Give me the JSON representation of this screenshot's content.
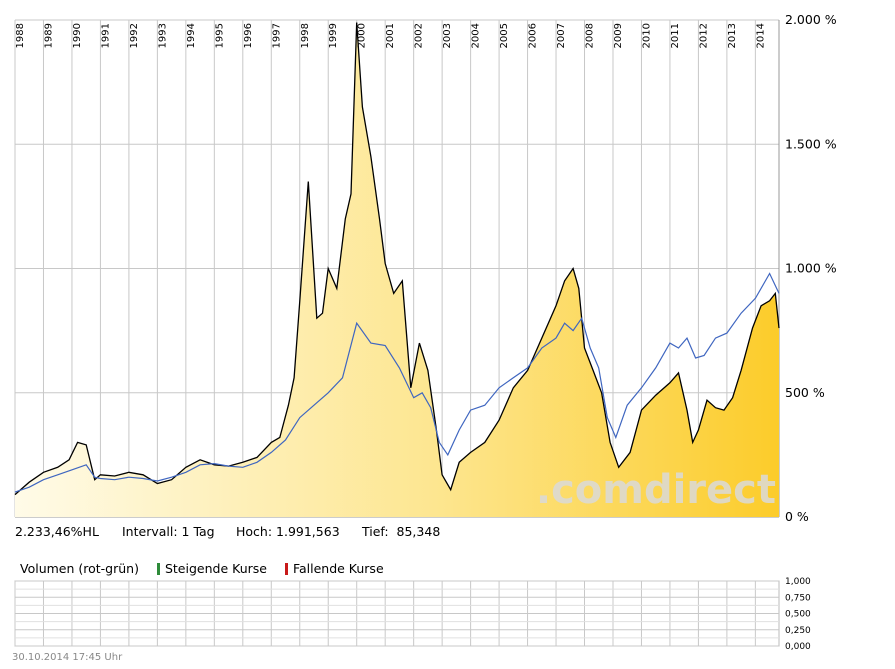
{
  "chart_data": [
    {
      "type": "area",
      "xlim": [
        1988,
        2014.83
      ],
      "ylim": [
        0,
        2000
      ],
      "years": [
        "1988",
        "1989",
        "1990",
        "1991",
        "1992",
        "1993",
        "1994",
        "1995",
        "1996",
        "1997",
        "1998",
        "1999",
        "2000",
        "2001",
        "2002",
        "2003",
        "2004",
        "2005",
        "2006",
        "2007",
        "2008",
        "2009",
        "2010",
        "2011",
        "2012",
        "2013",
        "2014"
      ],
      "y_ticks": [
        {
          "value": 0,
          "label": "0 %"
        },
        {
          "value": 500,
          "label": "500 %"
        },
        {
          "value": 1000,
          "label": "1.000 %"
        },
        {
          "value": 1500,
          "label": "1.500 %"
        },
        {
          "value": 2000,
          "label": "2.000 %"
        }
      ],
      "grid": true,
      "series": [
        {
          "color": "#000000",
          "fill": "#f8c830",
          "x": [
            1988.0,
            1988.5,
            1989.0,
            1989.5,
            1989.9,
            1990.2,
            1990.5,
            1990.8,
            1991.0,
            1991.5,
            1992.0,
            1992.5,
            1993.0,
            1993.5,
            1994.0,
            1994.5,
            1995.0,
            1995.5,
            1996.0,
            1996.5,
            1997.0,
            1997.3,
            1997.6,
            1997.8,
            1998.0,
            1998.3,
            1998.6,
            1998.8,
            1999.0,
            1999.3,
            1999.6,
            1999.8,
            2000.0,
            2000.2,
            2000.5,
            2000.8,
            2001.0,
            2001.3,
            2001.6,
            2001.9,
            2002.2,
            2002.5,
            2002.8,
            2003.0,
            2003.3,
            2003.6,
            2004.0,
            2004.5,
            2005.0,
            2005.5,
            2006.0,
            2006.5,
            2007.0,
            2007.3,
            2007.6,
            2007.8,
            2008.0,
            2008.3,
            2008.6,
            2008.9,
            2009.2,
            2009.6,
            2010.0,
            2010.5,
            2011.0,
            2011.3,
            2011.6,
            2011.8,
            2012.0,
            2012.3,
            2012.6,
            2012.9,
            2013.2,
            2013.5,
            2013.9,
            2014.2,
            2014.5,
            2014.7,
            2014.83
          ],
          "values": [
            90,
            140,
            180,
            200,
            230,
            300,
            290,
            150,
            170,
            165,
            180,
            170,
            135,
            150,
            200,
            230,
            210,
            205,
            220,
            240,
            300,
            320,
            450,
            560,
            870,
            1350,
            800,
            820,
            1000,
            920,
            1200,
            1300,
            1990,
            1650,
            1450,
            1200,
            1020,
            900,
            950,
            520,
            700,
            590,
            350,
            170,
            110,
            220,
            260,
            300,
            390,
            520,
            590,
            720,
            850,
            950,
            1000,
            920,
            680,
            590,
            500,
            300,
            200,
            260,
            430,
            490,
            540,
            580,
            430,
            300,
            350,
            470,
            440,
            430,
            480,
            590,
            760,
            850,
            870,
            900,
            760
          ]
        },
        {
          "color": "#3f66c0",
          "x": [
            1988.0,
            1988.5,
            1989.0,
            1989.5,
            1990.0,
            1990.5,
            1990.8,
            1991.0,
            1991.5,
            1992.0,
            1992.5,
            1993.0,
            1993.5,
            1994.0,
            1994.5,
            1995.0,
            1995.5,
            1996.0,
            1996.5,
            1997.0,
            1997.5,
            1998.0,
            1998.5,
            1999.0,
            1999.5,
            2000.0,
            2000.5,
            2001.0,
            2001.5,
            2002.0,
            2002.3,
            2002.6,
            2002.9,
            2003.2,
            2003.6,
            2004.0,
            2004.5,
            2005.0,
            2005.5,
            2006.0,
            2006.5,
            2007.0,
            2007.3,
            2007.6,
            2007.9,
            2008.2,
            2008.5,
            2008.8,
            2009.1,
            2009.5,
            2010.0,
            2010.5,
            2011.0,
            2011.3,
            2011.6,
            2011.9,
            2012.2,
            2012.6,
            2013.0,
            2013.5,
            2014.0,
            2014.5,
            2014.83
          ],
          "values": [
            100,
            120,
            150,
            170,
            190,
            210,
            160,
            155,
            150,
            160,
            155,
            145,
            160,
            180,
            210,
            215,
            205,
            200,
            220,
            260,
            310,
            400,
            450,
            500,
            560,
            780,
            700,
            690,
            600,
            480,
            500,
            440,
            300,
            250,
            350,
            430,
            450,
            520,
            560,
            600,
            680,
            720,
            780,
            750,
            800,
            680,
            600,
            400,
            320,
            450,
            520,
            600,
            700,
            680,
            720,
            640,
            650,
            720,
            740,
            820,
            880,
            980,
            900
          ]
        }
      ],
      "stats": {
        "change": "2.233,46%HL",
        "interval": "Intervall: 1 Tag",
        "high": "Hoch: 1.991,563",
        "low": "Tief:  85,348"
      }
    },
    {
      "type": "bar",
      "title": "Volumen (rot-grün)",
      "ylim": [
        0,
        1
      ],
      "y_ticks": [
        "1,000",
        "0,750",
        "0,500",
        "0,250",
        "0,000"
      ],
      "grid": true,
      "legend": [
        {
          "label": "Steigende Kurse",
          "color": "#2e8b3a"
        },
        {
          "label": "Fallende Kurse",
          "color": "#c81a1a"
        }
      ],
      "values": []
    }
  ],
  "watermark": ".comdirect",
  "timestamp": "30.10.2014 17:45 Uhr"
}
